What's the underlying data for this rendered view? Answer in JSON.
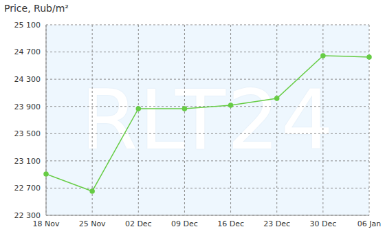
{
  "chart_data": {
    "type": "line",
    "title": "Price, Rub/m²",
    "annotations": [
      "RLT24"
    ],
    "categories": [
      "18 Nov",
      "25 Nov",
      "02 Dec",
      "09 Dec",
      "16 Dec",
      "23 Dec",
      "30 Dec",
      "06 Jan"
    ],
    "values": [
      22907,
      22654,
      23867,
      23867,
      23918,
      24019,
      24646,
      24626
    ],
    "color": "#66cc44",
    "marker": "circle",
    "line_style": "solid",
    "ylim": [
      22300,
      25100
    ],
    "yticks": [
      {
        "value": 22300,
        "label": "22 300"
      },
      {
        "value": 22700,
        "label": "22 700"
      },
      {
        "value": 23100,
        "label": "23 100"
      },
      {
        "value": 23500,
        "label": "23 500"
      },
      {
        "value": 23900,
        "label": "23 900"
      },
      {
        "value": 24300,
        "label": "24 300"
      },
      {
        "value": 24700,
        "label": "24 700"
      },
      {
        "value": 25100,
        "label": "25 100"
      }
    ],
    "grid": true
  }
}
